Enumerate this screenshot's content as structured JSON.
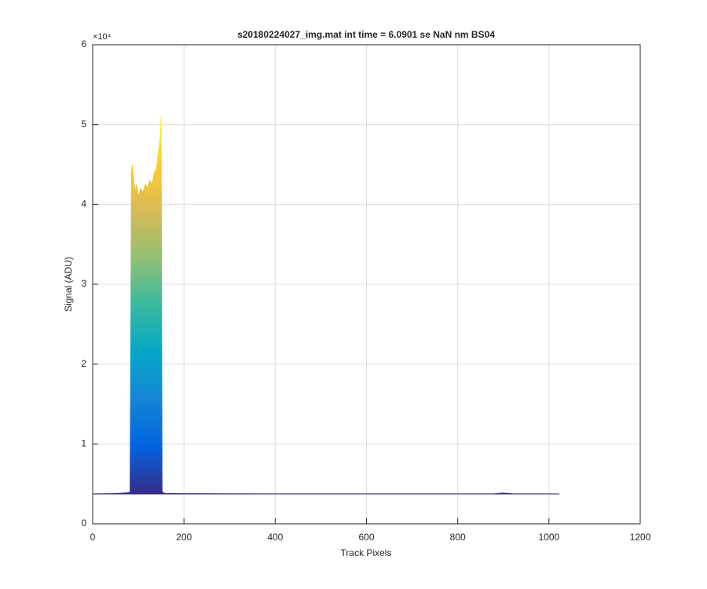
{
  "chart_data": {
    "type": "area",
    "title": "s20180224027_img.mat int time = 6.0901 se  NaN nm BS04",
    "x_label": "Track Pixels",
    "y_label": "Signal (ADU)",
    "y_exponent": "×10⁴",
    "x": [
      0,
      20,
      40,
      60,
      75,
      82,
      85,
      87,
      90,
      93,
      96,
      100,
      105,
      110,
      115,
      120,
      125,
      130,
      135,
      140,
      143,
      146,
      148,
      150,
      152,
      155,
      160,
      200,
      300,
      400,
      500,
      600,
      700,
      800,
      880,
      900,
      920,
      1000,
      1023
    ],
    "values": [
      3750,
      3760,
      3780,
      3820,
      3880,
      3950,
      44000,
      45000,
      43000,
      41500,
      42500,
      41000,
      42000,
      41500,
      42500,
      42000,
      43000,
      42500,
      44000,
      44500,
      46000,
      47500,
      48500,
      51000,
      4100,
      3850,
      3800,
      3780,
      3760,
      3750,
      3750,
      3750,
      3750,
      3750,
      3760,
      3850,
      3760,
      3750,
      3740
    ],
    "colormap": [
      "#352a87",
      "#0363e1",
      "#1485d4",
      "#06a7c6",
      "#38b99e",
      "#92bf73",
      "#d9ba56",
      "#fcce2e",
      "#f9fb0e"
    ],
    "xlim": [
      0,
      1200
    ],
    "xticks": [
      0,
      200,
      400,
      600,
      800,
      1000,
      1200
    ],
    "ylim": [
      0,
      60000
    ],
    "yticks": [
      {
        "value": 0,
        "label": "0"
      },
      {
        "value": 10000,
        "label": "1"
      },
      {
        "value": 20000,
        "label": "2"
      },
      {
        "value": 30000,
        "label": "3"
      },
      {
        "value": 40000,
        "label": "4"
      },
      {
        "value": 50000,
        "label": "5"
      },
      {
        "value": 60000,
        "label": "6"
      }
    ],
    "grid": true
  }
}
